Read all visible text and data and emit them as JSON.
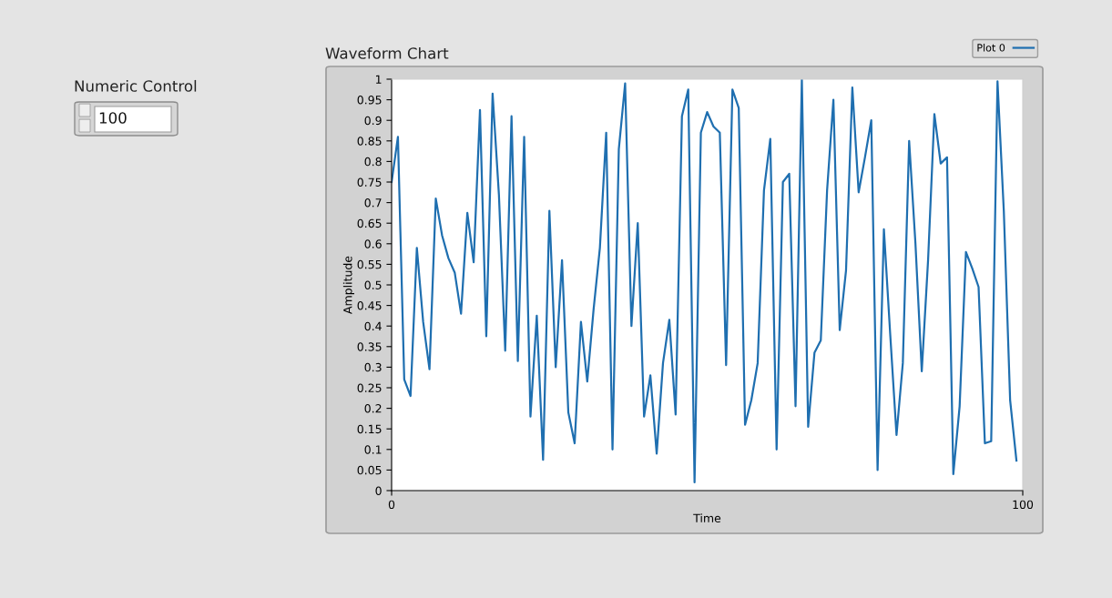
{
  "chart_data": {
    "type": "line",
    "title": "Waveform Chart",
    "xlabel": "Time",
    "ylabel": "Amplitude",
    "annotations": [
      "Numeric Control",
      "100"
    ],
    "x": [
      0,
      1,
      2,
      3,
      4,
      5,
      6,
      7,
      8,
      9,
      10,
      11,
      12,
      13,
      14,
      15,
      16,
      17,
      18,
      19,
      20,
      21,
      22,
      23,
      24,
      25,
      26,
      27,
      28,
      29,
      30,
      31,
      32,
      33,
      34,
      35,
      36,
      37,
      38,
      39,
      40,
      41,
      42,
      43,
      44,
      45,
      46,
      47,
      48,
      49,
      50,
      51,
      52,
      53,
      54,
      55,
      56,
      57,
      58,
      59,
      60,
      61,
      62,
      63,
      64,
      65,
      66,
      67,
      68,
      69,
      70,
      71,
      72,
      73,
      74,
      75,
      76,
      77,
      78,
      79,
      80,
      81,
      82,
      83,
      84,
      85,
      86,
      87,
      88,
      89,
      90,
      91,
      92,
      93,
      94,
      95,
      96,
      97,
      98,
      99
    ],
    "series": [
      {
        "name": "Plot 0",
        "color": "#1f6fb0",
        "values": [
          0.75,
          0.86,
          0.27,
          0.23,
          0.59,
          0.41,
          0.295,
          0.71,
          0.62,
          0.565,
          0.53,
          0.43,
          0.675,
          0.555,
          0.925,
          0.375,
          0.965,
          0.72,
          0.34,
          0.91,
          0.315,
          0.86,
          0.18,
          0.425,
          0.075,
          0.68,
          0.3,
          0.56,
          0.19,
          0.115,
          0.41,
          0.265,
          0.44,
          0.59,
          0.87,
          0.1,
          0.83,
          0.99,
          0.4,
          0.65,
          0.18,
          0.28,
          0.09,
          0.31,
          0.415,
          0.185,
          0.91,
          0.975,
          0.02,
          0.87,
          0.92,
          0.885,
          0.87,
          0.305,
          0.975,
          0.93,
          0.16,
          0.22,
          0.31,
          0.73,
          0.855,
          0.1,
          0.75,
          0.77,
          0.205,
          1.0,
          0.155,
          0.335,
          0.365,
          0.73,
          0.95,
          0.39,
          0.535,
          0.98,
          0.725,
          0.81,
          0.9,
          0.05,
          0.635,
          0.38,
          0.135,
          0.31,
          0.85,
          0.6,
          0.29,
          0.56,
          0.915,
          0.795,
          0.81,
          0.04,
          0.205,
          0.58,
          0.54,
          0.495,
          0.115,
          0.12,
          0.995,
          0.68,
          0.22,
          0.073
        ]
      }
    ],
    "xlim": [
      0,
      100
    ],
    "xticks": [
      0,
      100
    ],
    "ylim": [
      0,
      1
    ],
    "yticks": [
      0,
      0.05,
      0.1,
      0.15,
      0.2,
      0.25,
      0.3,
      0.35,
      0.4,
      0.45,
      0.5,
      0.55,
      0.6,
      0.65,
      0.7,
      0.75,
      0.8,
      0.85,
      0.9,
      0.95,
      1
    ],
    "grid": false,
    "legend": "top right",
    "marker": "none",
    "line_style": "solid"
  }
}
